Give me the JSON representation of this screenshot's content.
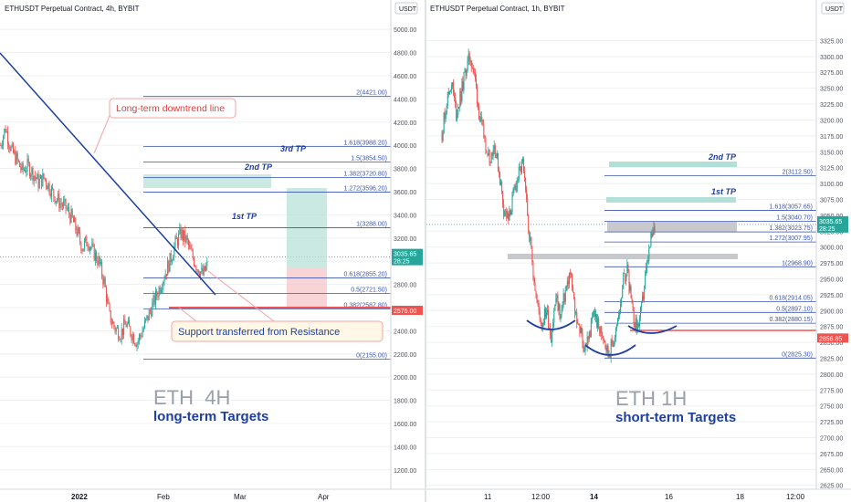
{
  "colors": {
    "up": "#26a69a",
    "down": "#ef5350",
    "line": "#1e3fa0",
    "grid": "#eef0f3",
    "tag_green": "#26a69a",
    "tag_red": "#ef5350",
    "support_line": "#ef5350",
    "callout_border": "#f5a3a3",
    "callout_text": "#e03b3b",
    "support_text": "#1e3fa0",
    "watermark": "#9aa0aa",
    "target_green": "#b2dfd6",
    "target_red": "#f6c9cc"
  },
  "chart_data": [
    {
      "type": "candlestick",
      "title": "ETHUSDT Perpetual Contract, 4h, BYBIT",
      "currency": "USDT",
      "y_axis_ticks": [
        1200,
        1400,
        1600,
        1800,
        2000,
        2200,
        2400,
        2600,
        2800,
        3000,
        3200,
        3400,
        3600,
        3800,
        4000,
        4200,
        4400,
        4600,
        4800,
        5000
      ],
      "ylim": [
        1080,
        5080
      ],
      "x_axis_labels": [
        "2022",
        "Feb",
        "Mar",
        "Apr"
      ],
      "price_tag": {
        "value": "3035.65",
        "countdown": "28:25"
      },
      "support_tag": "2576.00",
      "fib_levels": [
        {
          "label": "2(4421.00)",
          "value": 4421.0
        },
        {
          "label": "1.618(3988.20)",
          "value": 3988.2
        },
        {
          "label": "1.5(3854.50)",
          "value": 3854.5
        },
        {
          "label": "1.382(3720.80)",
          "value": 3720.8
        },
        {
          "label": "1.272(3596.20)",
          "value": 3596.2
        },
        {
          "label": "1(3288.00)",
          "value": 3288.0
        },
        {
          "label": "0.618(2855.20)",
          "value": 2855.2
        },
        {
          "label": "0.5(2721.50)",
          "value": 2721.5
        },
        {
          "label": "0.382(2587.80)",
          "value": 2587.8
        },
        {
          "label": "0(2155.00)",
          "value": 2155.0
        }
      ],
      "targets": [
        "1st TP",
        "2nd TP",
        "3rd TP"
      ],
      "annotations": {
        "downtrend": "Long-term downtrend line",
        "support": "Support transferred from Resistance",
        "watermark_title": "ETH  4H",
        "watermark_subtitle": "long-term Targets"
      },
      "price_path": [
        4000,
        4150,
        3960,
        3880,
        3780,
        3820,
        3760,
        3680,
        3720,
        3640,
        3560,
        3500,
        3460,
        3380,
        3260,
        3120,
        3180,
        3080,
        3000,
        2820,
        2520,
        2420,
        2380,
        2460,
        2380,
        2300,
        2400,
        2520,
        2640,
        2760,
        2880,
        3000,
        3150,
        3240,
        3180,
        3050,
        2950,
        2880,
        2980
      ]
    },
    {
      "type": "candlestick",
      "title": "ETHUSDT Perpetual Contract, 1h, BYBIT",
      "currency": "USDT",
      "y_axis_ticks": [
        2625,
        2650,
        2675,
        2700,
        2725,
        2750,
        2775,
        2800,
        2825,
        2850,
        2875,
        2900,
        2925,
        2950,
        2975,
        3000,
        3025,
        3050,
        3075,
        3100,
        3125,
        3150,
        3175,
        3200,
        3225,
        3250,
        3275,
        3300,
        3325
      ],
      "ylim": [
        2616,
        3340
      ],
      "x_axis_labels": [
        "11",
        "12:00",
        "14",
        "16",
        "18",
        "12:00"
      ],
      "price_tag": {
        "value": "3035.65",
        "countdown": "28:25"
      },
      "support_tag": "2856.85",
      "fib_levels": [
        {
          "label": "2(3112.50)",
          "value": 3112.5
        },
        {
          "label": "1.618(3057.65)",
          "value": 3057.65
        },
        {
          "label": "1.5(3040.70)",
          "value": 3040.7
        },
        {
          "label": "1.382(3023.75)",
          "value": 3023.75
        },
        {
          "label": "1.272(3007.95)",
          "value": 3007.95
        },
        {
          "label": "1(2968.90)",
          "value": 2968.9
        },
        {
          "label": "0.618(2914.05)",
          "value": 2914.05
        },
        {
          "label": "0.5(2897.10)",
          "value": 2897.1
        },
        {
          "label": "0.382(2880.15)",
          "value": 2880.15
        },
        {
          "label": "0(2825.30)",
          "value": 2825.3
        }
      ],
      "targets": [
        "1st TP",
        "2nd TP"
      ],
      "annotations": {
        "watermark_title": "ETH 1H",
        "watermark_subtitle": "short-term Targets"
      },
      "price_path": [
        3180,
        3230,
        3260,
        3210,
        3240,
        3280,
        3300,
        3260,
        3200,
        3170,
        3140,
        3160,
        3120,
        3060,
        3040,
        3080,
        3110,
        3130,
        3050,
        2980,
        2910,
        2880,
        2900,
        2860,
        2920,
        2890,
        2930,
        2960,
        2900,
        2870,
        2840,
        2860,
        2900,
        2870,
        2860,
        2830,
        2850,
        2880,
        2940,
        2970,
        2900,
        2870,
        2900,
        2960,
        3010,
        3035
      ]
    }
  ]
}
